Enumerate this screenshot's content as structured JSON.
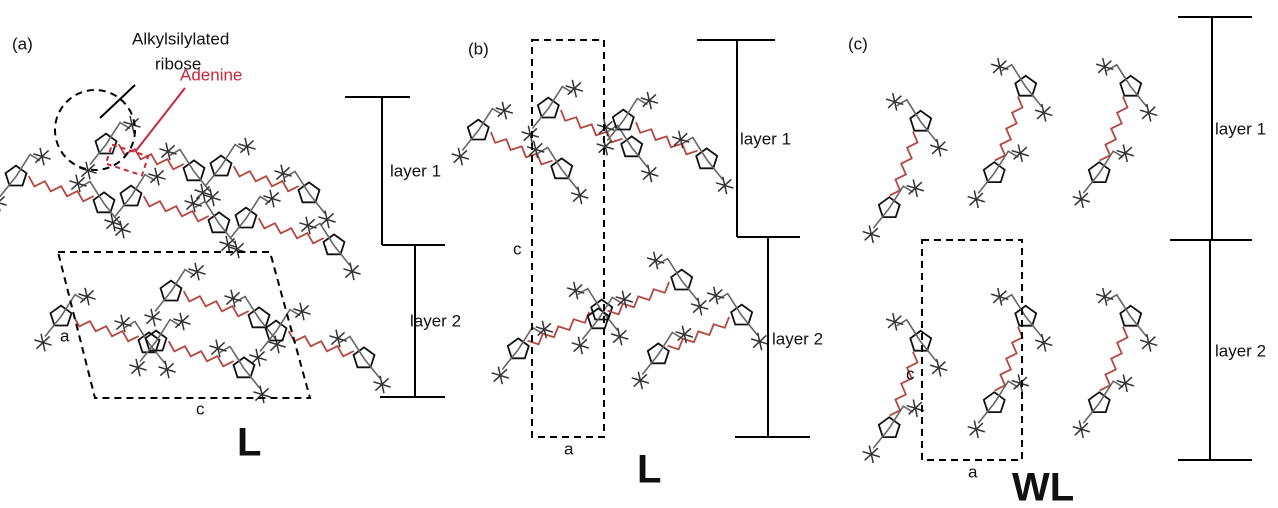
{
  "panels": [
    {
      "label": "(a)",
      "annotations": {
        "ribose": [
          "Alkylsilylated",
          "ribose"
        ],
        "adenine": "Adenine"
      },
      "layers": [
        "layer 1",
        "layer 2"
      ],
      "axes": [
        "a",
        "c"
      ],
      "lattice": "L"
    },
    {
      "label": "(b)",
      "layers": [
        "layer 1",
        "layer 2"
      ],
      "axes": [
        "c",
        "a"
      ],
      "lattice": "L"
    },
    {
      "label": "(c)",
      "layers": [
        "layer 1",
        "layer 2"
      ],
      "axes": [
        "c",
        "a"
      ],
      "lattice": "WL"
    }
  ]
}
